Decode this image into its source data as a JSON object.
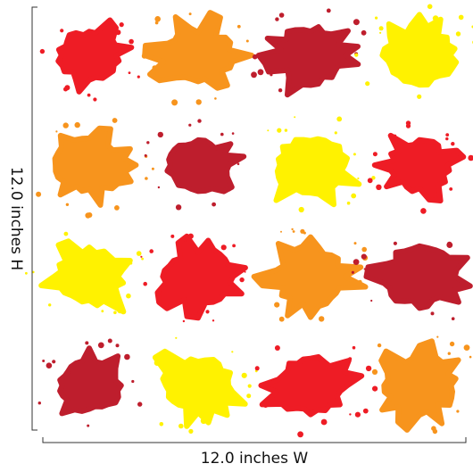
{
  "height_label": "12.0 inches H",
  "width_label": "12.0 inches W"
}
